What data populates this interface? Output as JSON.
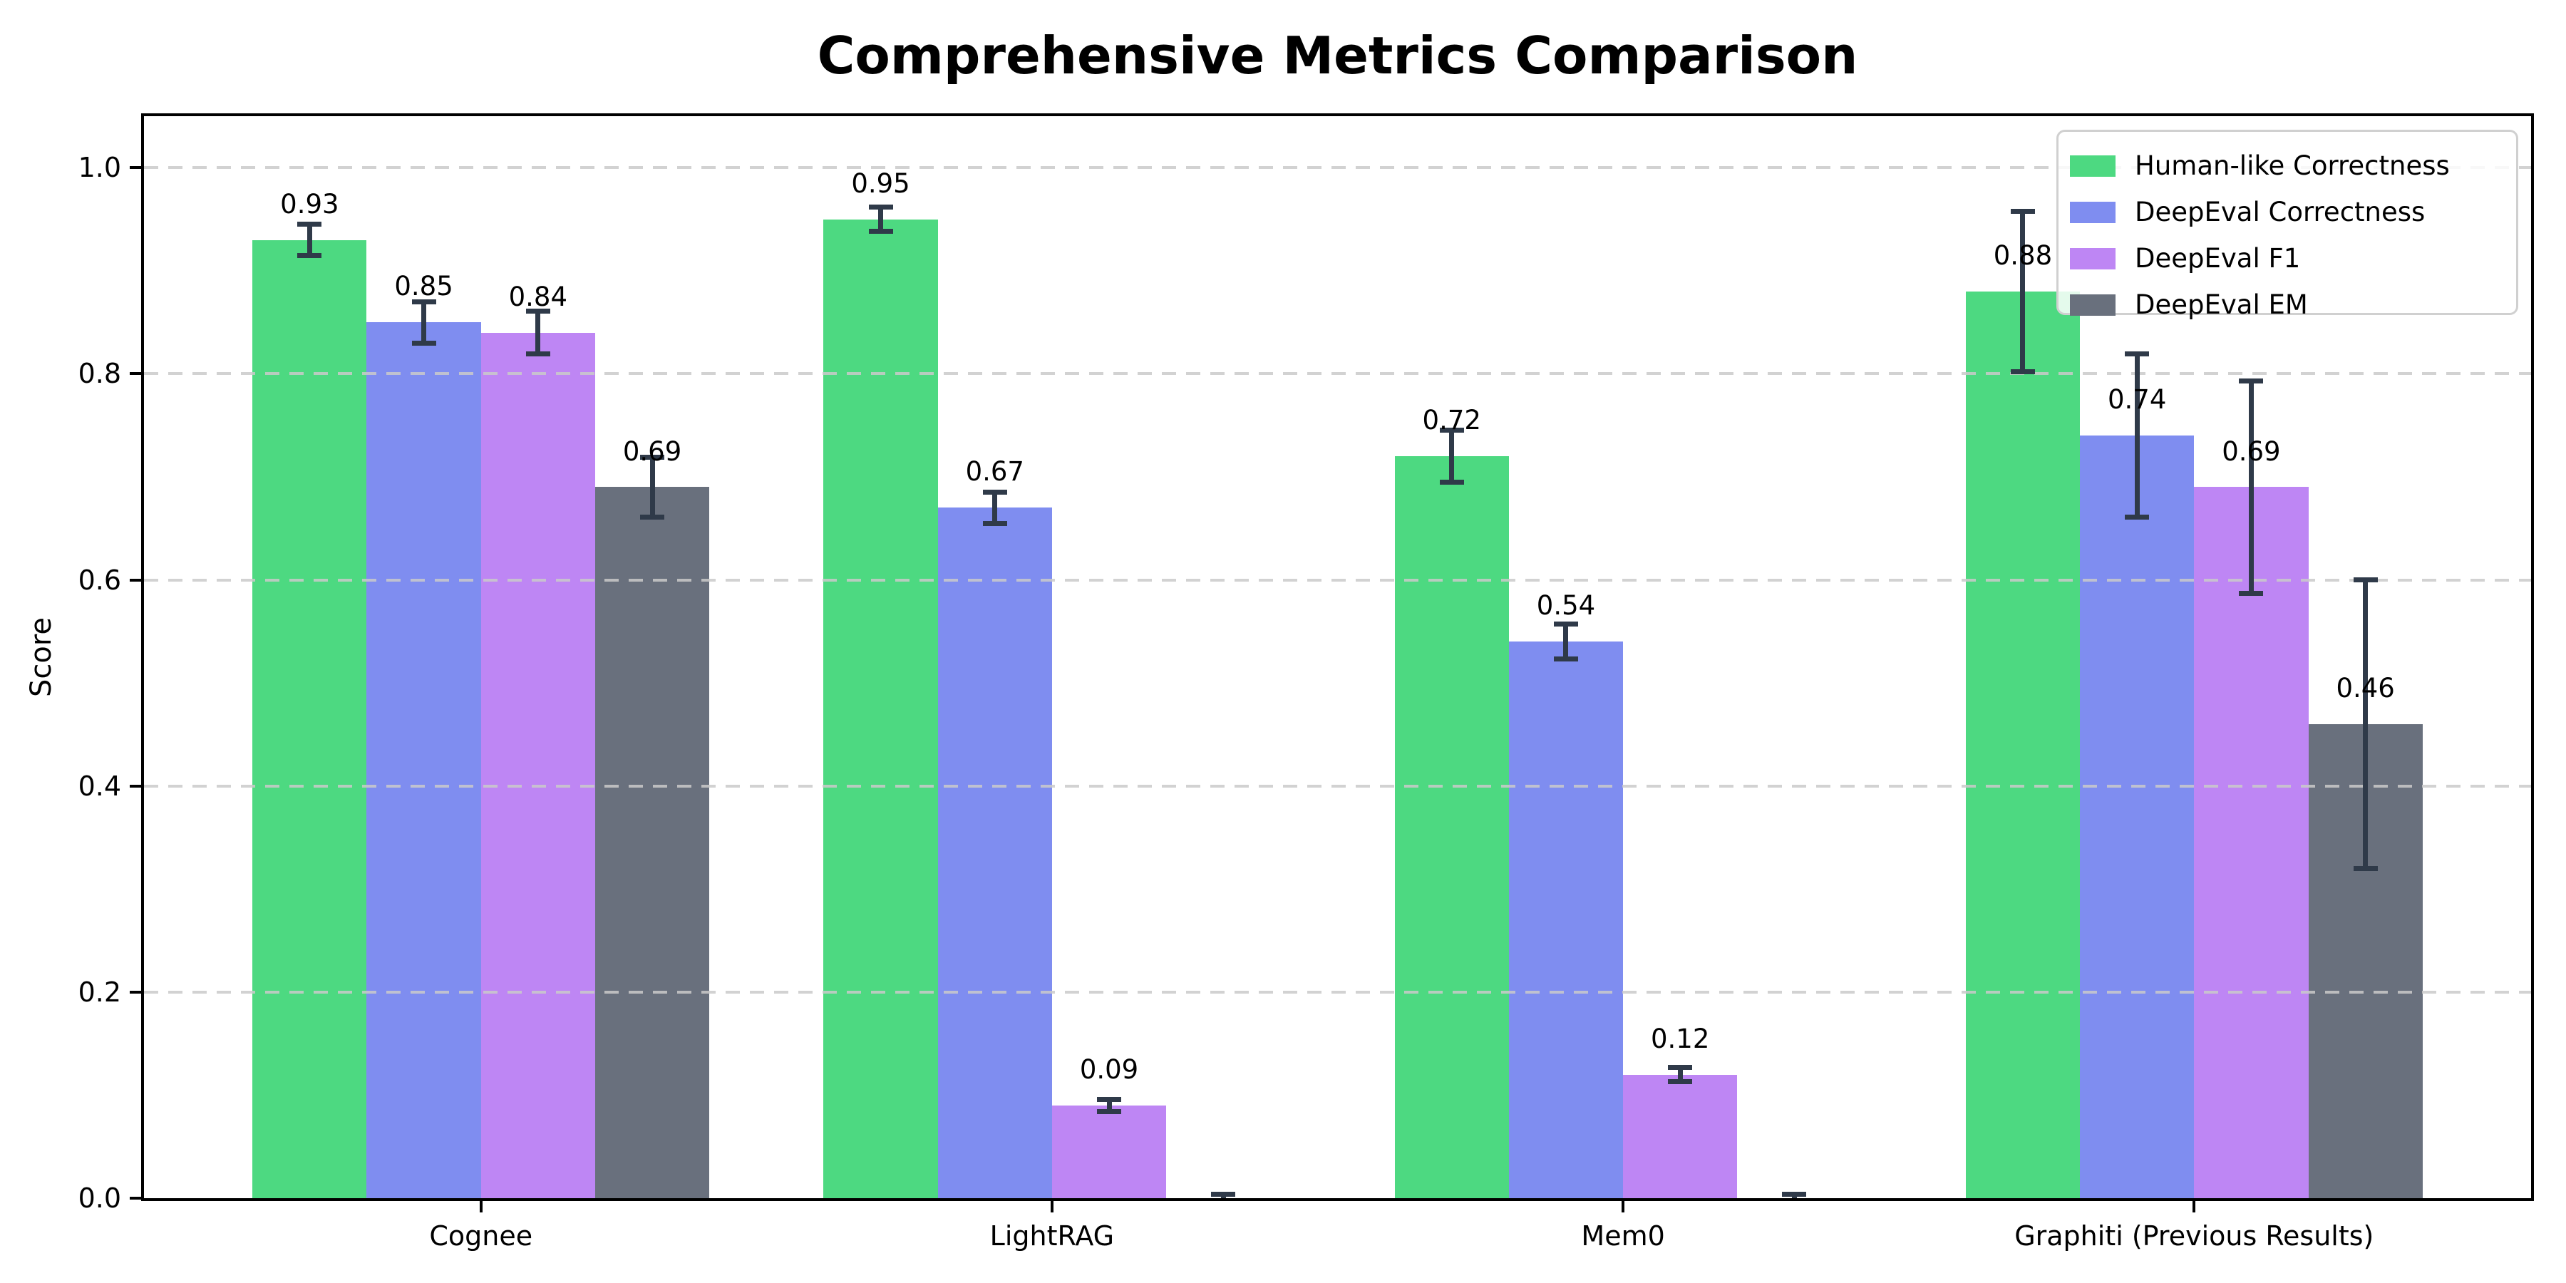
{
  "title": "Comprehensive Metrics Comparison",
  "axes": {
    "ylabel": "Score",
    "yticks": [
      "0.0",
      "0.2",
      "0.4",
      "0.6",
      "0.8",
      "1.0"
    ]
  },
  "chart_data": {
    "type": "bar",
    "title": "Comprehensive Metrics Comparison",
    "xlabel": "",
    "ylabel": "Score",
    "ylim": [
      0,
      1.05
    ],
    "ytick_values": [
      0.0,
      0.2,
      0.4,
      0.6,
      0.8,
      1.0
    ],
    "grid": "horizontal dashed lightgray at 0.2 intervals",
    "legend_position": "upper right",
    "categories": [
      "Cognee",
      "LightRAG",
      "Mem0",
      "Graphiti (Previous Results)"
    ],
    "bar_width_data_units": 0.2,
    "xlim": [
      -0.59,
      3.59
    ],
    "error_color": "#2f3a49",
    "series": [
      {
        "name": "Human-like Correctness",
        "color": "#4dd981",
        "values": [
          0.93,
          0.95,
          0.72,
          0.88
        ],
        "errors": [
          0.015,
          0.012,
          0.025,
          0.078
        ],
        "labels": [
          "0.93",
          "0.95",
          "0.72",
          "0.88"
        ]
      },
      {
        "name": "DeepEval Correctness",
        "color": "#7f8df0",
        "values": [
          0.85,
          0.67,
          0.54,
          0.74
        ],
        "errors": [
          0.02,
          0.015,
          0.017,
          0.079
        ],
        "labels": [
          "0.85",
          "0.67",
          "0.54",
          "0.74"
        ]
      },
      {
        "name": "DeepEval F1",
        "color": "#be86f4",
        "values": [
          0.84,
          0.09,
          0.12,
          0.69
        ],
        "errors": [
          0.021,
          0.006,
          0.007,
          0.103
        ],
        "labels": [
          "0.84",
          "0.09",
          "0.12",
          "0.69"
        ]
      },
      {
        "name": "DeepEval EM",
        "color": "#69707d",
        "values": [
          0.69,
          0.0,
          0.0,
          0.46
        ],
        "errors": [
          0.029,
          0.004,
          0.004,
          0.14
        ],
        "labels": [
          "0.69",
          null,
          null,
          "0.46"
        ]
      }
    ]
  }
}
